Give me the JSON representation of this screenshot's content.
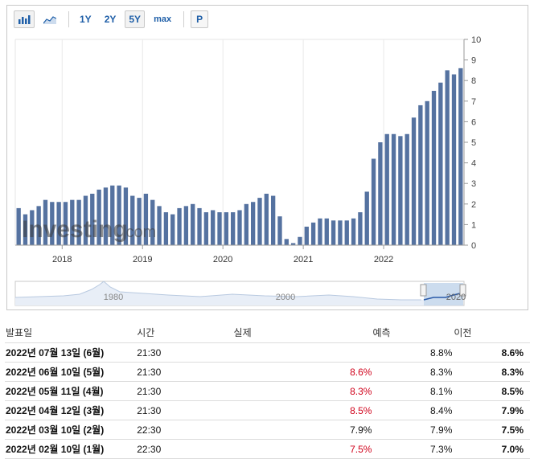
{
  "toolbar": {
    "range_buttons": [
      "1Y",
      "2Y",
      "5Y",
      "max"
    ],
    "active_range": "5Y",
    "print_label": "P",
    "icons": [
      "bar-chart-icon",
      "area-chart-icon"
    ]
  },
  "watermark": {
    "brand": "Investing",
    "suffix": ".com"
  },
  "colors": {
    "bar": "#5572a0",
    "accent_link": "#1f5fa8",
    "negative": "#d0021b",
    "navigator_fill": "#c7d8ec",
    "navigator_line": "#2a5aa8"
  },
  "chart_data": {
    "type": "bar",
    "y_ticks": [
      "0",
      "1",
      "2",
      "3",
      "4",
      "5",
      "6",
      "7",
      "8",
      "9",
      "10"
    ],
    "ylim": [
      0,
      10
    ],
    "x_ticks": [
      "2018",
      "2019",
      "2020",
      "2021",
      "2022"
    ],
    "grid": "vertical",
    "series": [
      {
        "values": [
          1.8,
          1.5,
          1.7,
          1.9,
          2.2,
          2.1,
          2.1,
          2.1,
          2.2,
          2.2,
          2.4,
          2.5,
          2.7,
          2.8,
          2.9,
          2.9,
          2.8,
          2.4,
          2.3,
          2.5,
          2.2,
          1.9,
          1.6,
          1.5,
          1.8,
          1.9,
          2.0,
          1.8,
          1.6,
          1.7,
          1.6,
          1.6,
          1.6,
          1.7,
          2.0,
          2.1,
          2.3,
          2.5,
          2.4,
          1.4,
          0.3,
          0.1,
          0.4,
          0.9,
          1.1,
          1.3,
          1.3,
          1.2,
          1.2,
          1.2,
          1.3,
          1.6,
          2.6,
          4.2,
          5.0,
          5.4,
          5.4,
          5.3,
          5.4,
          6.2,
          6.8,
          7.0,
          7.5,
          7.9,
          8.5,
          8.3,
          8.6
        ]
      }
    ],
    "navigator": {
      "x_ticks": [
        "1980",
        "2000",
        "2020"
      ],
      "selected_range": "5Y"
    }
  },
  "table": {
    "headers": {
      "release": "발표일",
      "time": "시간",
      "actual": "실제",
      "forecast": "예측",
      "previous": "이전"
    },
    "rows": [
      {
        "date": "2022년 07월 13일 (6월)",
        "time": "21:30",
        "actual": "",
        "actual_color": "",
        "forecast": "8.8%",
        "previous": "8.6%"
      },
      {
        "date": "2022년 06월 10일 (5월)",
        "time": "21:30",
        "actual": "8.6%",
        "actual_color": "#d0021b",
        "forecast": "8.3%",
        "previous": "8.3%"
      },
      {
        "date": "2022년 05월 11일 (4월)",
        "time": "21:30",
        "actual": "8.3%",
        "actual_color": "#d0021b",
        "forecast": "8.1%",
        "previous": "8.5%"
      },
      {
        "date": "2022년 04월 12일 (3월)",
        "time": "21:30",
        "actual": "8.5%",
        "actual_color": "#d0021b",
        "forecast": "8.4%",
        "previous": "7.9%"
      },
      {
        "date": "2022년 03월 10일 (2월)",
        "time": "22:30",
        "actual": "7.9%",
        "actual_color": "#111111",
        "forecast": "7.9%",
        "previous": "7.5%"
      },
      {
        "date": "2022년 02월 10일 (1월)",
        "time": "22:30",
        "actual": "7.5%",
        "actual_color": "#d0021b",
        "forecast": "7.3%",
        "previous": "7.0%"
      }
    ]
  }
}
